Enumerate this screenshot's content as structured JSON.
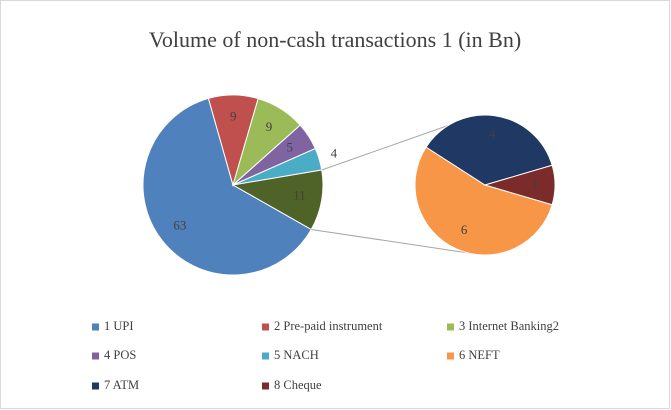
{
  "chart_data": {
    "type": "pie_of_pie",
    "title": "Volume of non-cash transactions 1 (in Bn)",
    "categories": [
      "1 UPI",
      "2 Pre-paid instrument",
      "3 Internet Banking2",
      "4 POS",
      "5 NACH",
      "6 NEFT",
      "7 ATM",
      "8 Cheque"
    ],
    "values": [
      63,
      9,
      9,
      5,
      4,
      6,
      4,
      1
    ],
    "colors": [
      "#4f81bd",
      "#c0504d",
      "#9bbb59",
      "#8064a2",
      "#4bacc6",
      "#f79646",
      "#1f3864",
      "#7b2c2a"
    ],
    "secondary_count": 3,
    "other_slice": {
      "value": 11,
      "color": "#4f6228"
    },
    "legend": "bottom"
  }
}
